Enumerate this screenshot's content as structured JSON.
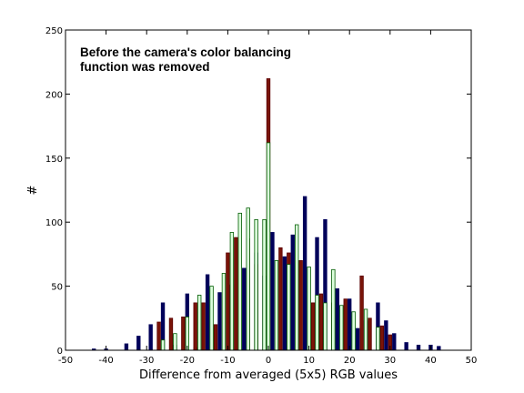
{
  "chart_data": {
    "type": "bar",
    "title": "",
    "annotation_lines": [
      "Before the camera's color balancing",
      "function was removed"
    ],
    "xlabel": "Difference from averaged (5x5) RGB values",
    "ylabel": "#",
    "xlim": [
      -50,
      50
    ],
    "ylim": [
      0,
      250
    ],
    "xticks": [
      -50,
      -40,
      -30,
      -20,
      -10,
      0,
      10,
      20,
      30,
      40,
      50
    ],
    "yticks": [
      0,
      50,
      100,
      150,
      200,
      250
    ],
    "grid": false,
    "bar_width": 0.8,
    "series": [
      {
        "color": "#00005a",
        "fill": "#00005a",
        "points": [
          [
            -43,
            1
          ],
          [
            -40,
            1
          ],
          [
            -38,
            0
          ],
          [
            -35,
            5
          ],
          [
            -32,
            11
          ],
          [
            -29,
            20
          ],
          [
            -26,
            37
          ],
          [
            -23,
            4
          ],
          [
            -20,
            44
          ],
          [
            -18,
            2
          ],
          [
            -15,
            59
          ],
          [
            -12,
            45
          ],
          [
            -9,
            51
          ],
          [
            -6,
            64
          ],
          [
            -3,
            76
          ],
          [
            -1,
            58
          ],
          [
            1,
            92
          ],
          [
            4,
            73
          ],
          [
            6,
            90
          ],
          [
            9,
            120
          ],
          [
            12,
            88
          ],
          [
            14,
            102
          ],
          [
            17,
            48
          ],
          [
            20,
            40
          ],
          [
            22,
            17
          ],
          [
            24,
            23
          ],
          [
            27,
            37
          ],
          [
            29,
            23
          ],
          [
            31,
            13
          ],
          [
            34,
            6
          ],
          [
            37,
            4
          ],
          [
            40,
            4
          ],
          [
            42,
            3
          ]
        ]
      },
      {
        "color": "#5a0000",
        "fill": "#7a1408",
        "points": [
          [
            -27,
            22
          ],
          [
            -24,
            25
          ],
          [
            -21,
            26
          ],
          [
            -18,
            37
          ],
          [
            -16,
            37
          ],
          [
            -13,
            20
          ],
          [
            -10,
            76
          ],
          [
            -8,
            88
          ],
          [
            -5,
            87
          ],
          [
            -3,
            67
          ],
          [
            0,
            212
          ],
          [
            3,
            80
          ],
          [
            5,
            76
          ],
          [
            8,
            70
          ],
          [
            11,
            37
          ],
          [
            13,
            44
          ],
          [
            16,
            37
          ],
          [
            19,
            40
          ],
          [
            23,
            58
          ],
          [
            25,
            25
          ],
          [
            28,
            19
          ],
          [
            30,
            12
          ]
        ]
      },
      {
        "color": "#005a00",
        "fill": "#ddffdd",
        "points": [
          [
            -26,
            8
          ],
          [
            -23,
            13
          ],
          [
            -20,
            26
          ],
          [
            -17,
            43
          ],
          [
            -14,
            50
          ],
          [
            -11,
            60
          ],
          [
            -9,
            92
          ],
          [
            -7,
            107
          ],
          [
            -5,
            111
          ],
          [
            -3,
            102
          ],
          [
            -1,
            102
          ],
          [
            0,
            162
          ],
          [
            2,
            70
          ],
          [
            5,
            67
          ],
          [
            7,
            98
          ],
          [
            10,
            65
          ],
          [
            12,
            43
          ],
          [
            14,
            37
          ],
          [
            16,
            63
          ],
          [
            18,
            35
          ],
          [
            21,
            30
          ],
          [
            24,
            32
          ],
          [
            27,
            18
          ]
        ]
      }
    ]
  }
}
